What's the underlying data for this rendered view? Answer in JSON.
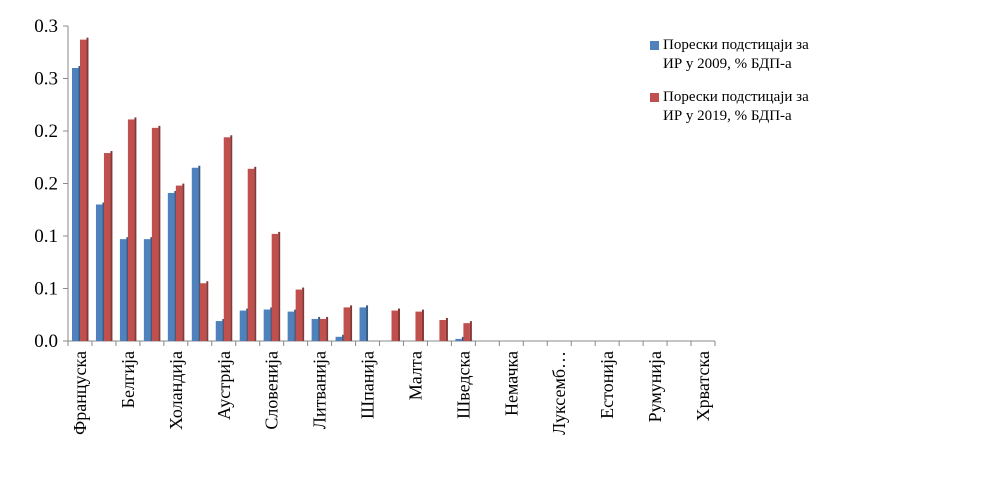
{
  "chart_data": {
    "type": "bar",
    "categories": [
      "Француска",
      null,
      "Белгија",
      null,
      "Холандија",
      null,
      "Аустрија",
      null,
      "Словенија",
      null,
      "Литванија",
      null,
      "Шпанија",
      null,
      "Малта",
      null,
      "Шведска",
      null,
      "Немачка",
      null,
      "Луксемб…",
      null,
      "Естонија",
      null,
      "Румунија",
      null,
      "Хрватска"
    ],
    "series": [
      {
        "name": "Порески подстицаји за ИР у 2009, % БДП-а",
        "color": "#4f81bd",
        "values": [
          0.26,
          0.13,
          0.097,
          0.097,
          0.141,
          0.165,
          0.019,
          0.029,
          0.03,
          0.028,
          0.021,
          0.004,
          0.032,
          0,
          0,
          0,
          0.002,
          0,
          0,
          0,
          0,
          0,
          0,
          0,
          0,
          0,
          0
        ]
      },
      {
        "name": "Порески подстицаји за ИР у 2019, % БДП-а",
        "color": "#c0504d",
        "values": [
          0.287,
          0.179,
          0.211,
          0.203,
          0.148,
          0.055,
          0.194,
          0.164,
          0.102,
          0.049,
          0.021,
          0.032,
          0,
          0.029,
          0.028,
          0.02,
          0.017,
          0,
          0,
          0,
          0,
          0,
          0,
          0,
          0,
          0,
          0
        ]
      }
    ],
    "ylim": [
      0,
      0.3
    ],
    "yticks": [
      {
        "value": 0,
        "label": "0.0"
      },
      {
        "value": 0.05,
        "label": "0.1"
      },
      {
        "value": 0.1,
        "label": "0.1"
      },
      {
        "value": 0.15,
        "label": "0.2"
      },
      {
        "value": 0.2,
        "label": "0.2"
      },
      {
        "value": 0.25,
        "label": "0.3"
      },
      {
        "value": 0.3,
        "label": "0.3"
      }
    ],
    "grid": false
  }
}
